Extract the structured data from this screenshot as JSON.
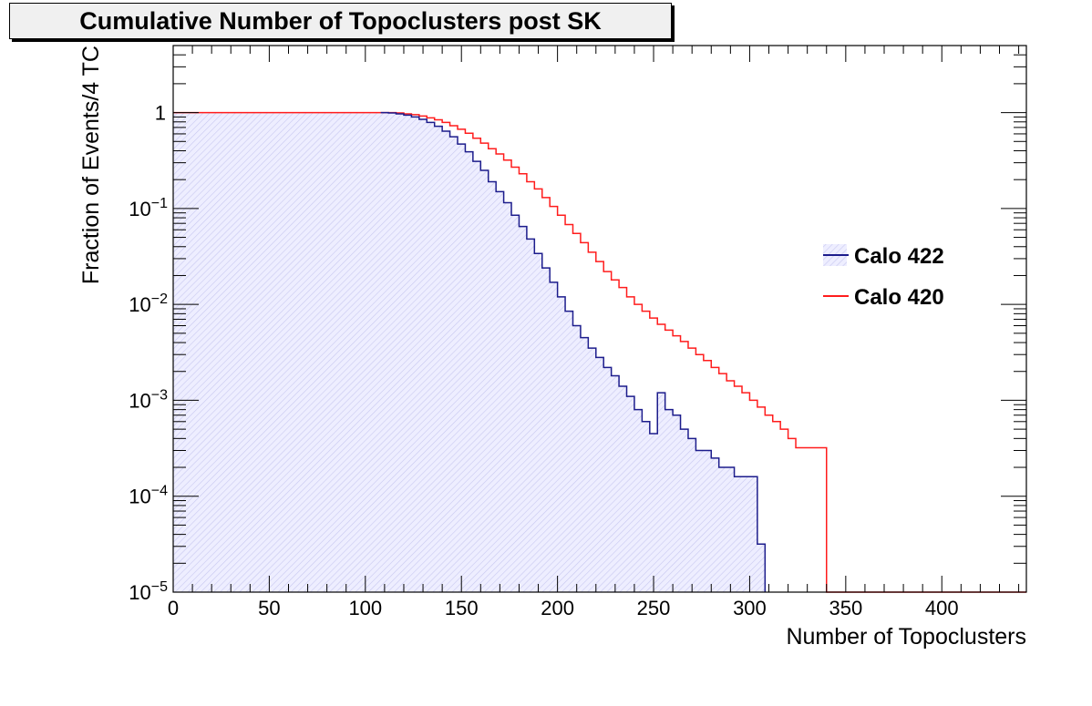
{
  "chart_data": {
    "type": "line",
    "subtype": "step-histogram-cumulative",
    "title": "Cumulative Number of Topoclusters post SK",
    "xlabel": "Number of Topoclusters",
    "ylabel": "Fraction of Events/4 TC",
    "xlim": [
      0,
      444
    ],
    "ylim": [
      1e-05,
      5
    ],
    "yscale": "log",
    "bin_width": 4,
    "x_ticks": [
      "0",
      "50",
      "100",
      "150",
      "200",
      "250",
      "300",
      "350",
      "400"
    ],
    "x_tick_values": [
      0,
      50,
      100,
      150,
      200,
      250,
      300,
      350,
      400
    ],
    "y_ticks": [
      {
        "value": 1,
        "base": "1",
        "exp": ""
      },
      {
        "value": 0.1,
        "base": "10",
        "exp": "−1"
      },
      {
        "value": 0.01,
        "base": "10",
        "exp": "−2"
      },
      {
        "value": 0.001,
        "base": "10",
        "exp": "−3"
      },
      {
        "value": 0.0001,
        "base": "10",
        "exp": "−4"
      },
      {
        "value": 1e-05,
        "base": "10",
        "exp": "−5"
      }
    ],
    "grid": false,
    "legend_position": "right",
    "series": [
      {
        "name": "Calo 422",
        "color": "#1c1c8c",
        "fill": "hatched-light-blue",
        "x": [
          108,
          112,
          116,
          120,
          124,
          128,
          132,
          136,
          140,
          144,
          148,
          152,
          156,
          160,
          164,
          168,
          172,
          176,
          180,
          184,
          188,
          192,
          196,
          200,
          204,
          208,
          212,
          216,
          220,
          224,
          228,
          232,
          236,
          240,
          244,
          248,
          252,
          256,
          260,
          264,
          268,
          272,
          276,
          280,
          284,
          288,
          292,
          296,
          300,
          304,
          308
        ],
        "y": [
          1.0,
          0.99,
          0.97,
          0.94,
          0.9,
          0.85,
          0.79,
          0.72,
          0.64,
          0.56,
          0.47,
          0.39,
          0.31,
          0.25,
          0.19,
          0.15,
          0.115,
          0.085,
          0.065,
          0.048,
          0.034,
          0.024,
          0.017,
          0.012,
          0.0085,
          0.006,
          0.0045,
          0.0035,
          0.0028,
          0.0022,
          0.0018,
          0.0014,
          0.0011,
          0.0008,
          0.0006,
          0.00045,
          0.0012,
          0.0008,
          0.0007,
          0.0005,
          0.0004,
          0.0003,
          0.0003,
          0.00025,
          0.0002,
          0.0002,
          0.00016,
          0.00016,
          0.00016,
          3.17e-05,
          1e-05
        ]
      },
      {
        "name": "Calo 420",
        "color": "#ff1c1c",
        "fill": "none",
        "x": [
          0,
          108,
          112,
          116,
          120,
          124,
          128,
          132,
          136,
          140,
          144,
          148,
          152,
          156,
          160,
          164,
          168,
          172,
          176,
          180,
          184,
          188,
          192,
          196,
          200,
          204,
          208,
          212,
          216,
          220,
          224,
          228,
          232,
          236,
          240,
          244,
          248,
          252,
          256,
          260,
          264,
          268,
          272,
          276,
          280,
          284,
          288,
          292,
          296,
          300,
          304,
          308,
          312,
          316,
          320,
          324,
          328,
          332,
          336,
          340,
          444
        ],
        "y": [
          1.0,
          1.0,
          1.0,
          0.99,
          0.97,
          0.95,
          0.92,
          0.88,
          0.84,
          0.79,
          0.73,
          0.67,
          0.61,
          0.54,
          0.48,
          0.42,
          0.37,
          0.32,
          0.27,
          0.23,
          0.19,
          0.16,
          0.13,
          0.105,
          0.085,
          0.068,
          0.055,
          0.044,
          0.035,
          0.028,
          0.022,
          0.018,
          0.015,
          0.012,
          0.01,
          0.0085,
          0.0072,
          0.0062,
          0.0054,
          0.0047,
          0.0041,
          0.0035,
          0.003,
          0.0026,
          0.0022,
          0.0019,
          0.0016,
          0.0014,
          0.0012,
          0.001,
          0.00085,
          0.0007,
          0.0006,
          0.0005,
          0.0004,
          0.00032,
          0.00032,
          0.00032,
          0.00032,
          1e-05,
          1e-05
        ]
      }
    ]
  }
}
